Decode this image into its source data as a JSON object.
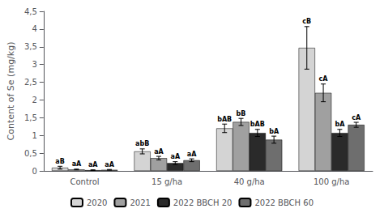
{
  "chart_data": {
    "type": "bar",
    "ylabel": "Content of Se (mg/kg)",
    "categories": [
      "Control",
      "15 g/ha",
      "40 g/ha",
      "100 g/ha"
    ],
    "series": [
      {
        "name": "2020",
        "color": "#d4d4d4",
        "values": [
          0.09,
          0.55,
          1.2,
          3.47
        ],
        "errors": [
          0.04,
          0.07,
          0.12,
          0.6
        ],
        "labels": [
          "aB",
          "abB",
          "bAB",
          "cB"
        ]
      },
      {
        "name": "2021",
        "color": "#a0a0a0",
        "values": [
          0.04,
          0.36,
          1.38,
          2.2
        ],
        "errors": [
          0.01,
          0.05,
          0.1,
          0.25
        ],
        "labels": [
          "aA",
          "aA",
          "bB",
          "cA"
        ]
      },
      {
        "name": "2022 BBCH 20",
        "color": "#2a2a2a",
        "values": [
          0.02,
          0.22,
          1.07,
          1.07
        ],
        "errors": [
          0.01,
          0.04,
          0.1,
          0.1
        ],
        "labels": [
          "aA",
          "aA",
          "bAB",
          "bA"
        ]
      },
      {
        "name": "2022 BBCH 60",
        "color": "#6e6e6e",
        "values": [
          0.03,
          0.3,
          0.88,
          1.3
        ],
        "errors": [
          0.01,
          0.04,
          0.1,
          0.07
        ],
        "labels": [
          "aA",
          "aA",
          "bA",
          "cA"
        ]
      }
    ],
    "ylim": [
      0,
      4.5
    ],
    "yticks": [
      0,
      {
        "value": 0.5,
        "label": "0,5"
      },
      1,
      {
        "value": 1.5,
        "label": "1,5"
      },
      2,
      {
        "value": 2.5,
        "label": "2,5"
      },
      3,
      {
        "value": 3.5,
        "label": "3,5"
      },
      4,
      {
        "value": 4.5,
        "label": "4,5"
      }
    ],
    "grid": false,
    "legend": "bottom"
  }
}
